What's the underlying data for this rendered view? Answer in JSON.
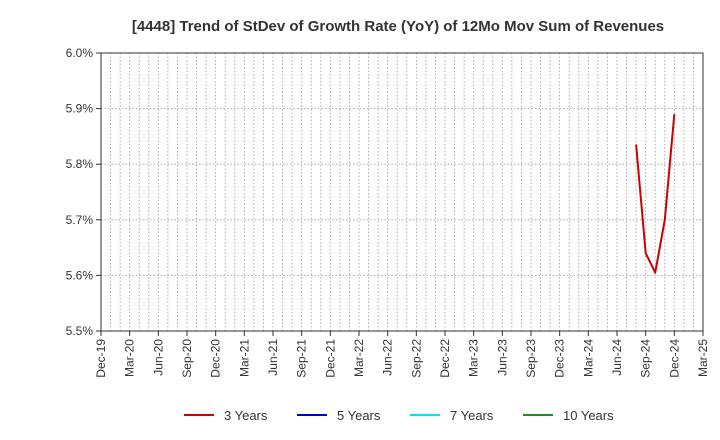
{
  "chart_data": {
    "type": "line",
    "title": "[4448]  Trend of StDev of Growth Rate (YoY) of 12Mo Mov Sum of Revenues",
    "xlabel": "",
    "ylabel": "",
    "ylim": [
      5.5,
      6.0
    ],
    "yticks": [
      "5.5%",
      "5.6%",
      "5.7%",
      "5.8%",
      "5.9%",
      "6.0%"
    ],
    "y_tick_values": [
      5.5,
      5.6,
      5.7,
      5.8,
      5.9,
      6.0
    ],
    "xlim": [
      "2019-12",
      "2025-03"
    ],
    "xticks": [
      "Dec-19",
      "Mar-20",
      "Jun-20",
      "Sep-20",
      "Dec-20",
      "Mar-21",
      "Jun-21",
      "Sep-21",
      "Dec-21",
      "Mar-22",
      "Jun-22",
      "Sep-22",
      "Dec-22",
      "Mar-23",
      "Jun-23",
      "Sep-23",
      "Dec-23",
      "Mar-24",
      "Jun-24",
      "Sep-24",
      "Dec-24",
      "Mar-25"
    ],
    "grid": true,
    "legend_position": "bottom",
    "series": [
      {
        "name": "3 Years",
        "color": "#cc0000",
        "x": [
          "2024-08",
          "2024-09",
          "2024-10",
          "2024-11",
          "2024-12"
        ],
        "y": [
          5.835,
          5.64,
          5.605,
          5.7,
          5.89
        ]
      },
      {
        "name": "5 Years",
        "color": "#0000cc",
        "x": [],
        "y": []
      },
      {
        "name": "7 Years",
        "color": "#00e5ee",
        "x": [],
        "y": []
      },
      {
        "name": "10 Years",
        "color": "#228b22",
        "x": [],
        "y": []
      }
    ]
  }
}
